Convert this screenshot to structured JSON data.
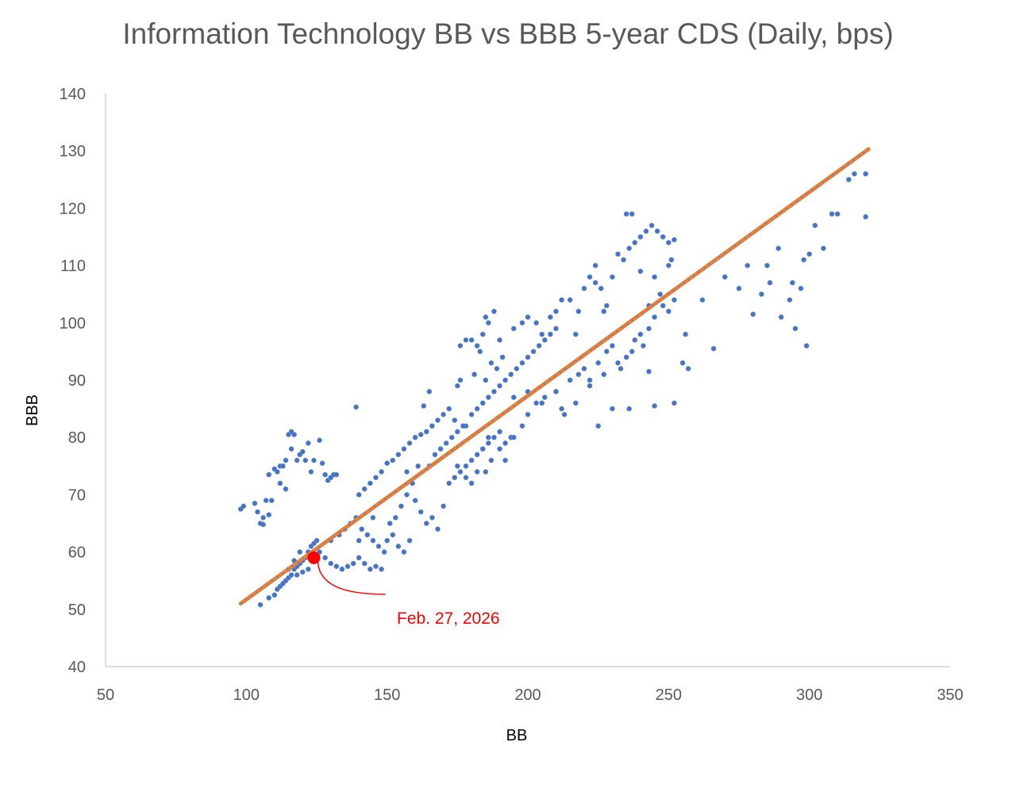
{
  "chart_data": {
    "type": "scatter",
    "title": "Information Technology BB vs BBB 5-year CDS (Daily, bps)",
    "xlabel": "BB",
    "ylabel": "BBB",
    "xlim": [
      50,
      350
    ],
    "ylim": [
      40,
      140
    ],
    "xticks": [
      "50",
      "100",
      "150",
      "200",
      "250",
      "300",
      "350"
    ],
    "yticks": [
      "40",
      "50",
      "60",
      "70",
      "80",
      "90",
      "100",
      "110",
      "120",
      "130",
      "140"
    ],
    "grid": false,
    "colors": {
      "points": "#4472c4",
      "trend": "#ed7d31",
      "highlight": "#ff0000"
    },
    "trendline": {
      "x": [
        98,
        321
      ],
      "y": [
        51,
        130.3
      ]
    },
    "highlight": {
      "x": 124,
      "y": 59,
      "label": "Feb. 27, 2026"
    },
    "points": [
      [
        98,
        67.5
      ],
      [
        99,
        68
      ],
      [
        104,
        67
      ],
      [
        105,
        65
      ],
      [
        106,
        66
      ],
      [
        103,
        68.5
      ],
      [
        108,
        66.5
      ],
      [
        107,
        69
      ],
      [
        108,
        73.5
      ],
      [
        110,
        74.5
      ],
      [
        111,
        74
      ],
      [
        112,
        75
      ],
      [
        113,
        75
      ],
      [
        114,
        76
      ],
      [
        115,
        80.5
      ],
      [
        116,
        81
      ],
      [
        117,
        80.5
      ],
      [
        116,
        78
      ],
      [
        118,
        76
      ],
      [
        119,
        77
      ],
      [
        120,
        77.5
      ],
      [
        121,
        76
      ],
      [
        122,
        79
      ],
      [
        123,
        74
      ],
      [
        124,
        76
      ],
      [
        126,
        79.5
      ],
      [
        127,
        75.5
      ],
      [
        128,
        73.5
      ],
      [
        129,
        72.5
      ],
      [
        130,
        73
      ],
      [
        131,
        73.5
      ],
      [
        132,
        73.5
      ],
      [
        139,
        85.3
      ],
      [
        114,
        71
      ],
      [
        109,
        69
      ],
      [
        106,
        64.8
      ],
      [
        112,
        72
      ],
      [
        105,
        50.8
      ],
      [
        108,
        52
      ],
      [
        110,
        52.5
      ],
      [
        111,
        53.5
      ],
      [
        112,
        54
      ],
      [
        113,
        54.5
      ],
      [
        114,
        55
      ],
      [
        115,
        55.5
      ],
      [
        116,
        56
      ],
      [
        117,
        57
      ],
      [
        118,
        57.5
      ],
      [
        119,
        58
      ],
      [
        120,
        58.5
      ],
      [
        121,
        59
      ],
      [
        122,
        60
      ],
      [
        123,
        61
      ],
      [
        124,
        61.5
      ],
      [
        125,
        62
      ],
      [
        115,
        57
      ],
      [
        118,
        56
      ],
      [
        120,
        56.5
      ],
      [
        122,
        57
      ],
      [
        119,
        60
      ],
      [
        117,
        58.5
      ],
      [
        126,
        60
      ],
      [
        128,
        59
      ],
      [
        130,
        58
      ],
      [
        132,
        57.5
      ],
      [
        134,
        57
      ],
      [
        136,
        57.5
      ],
      [
        138,
        58
      ],
      [
        140,
        59
      ],
      [
        142,
        58
      ],
      [
        144,
        57
      ],
      [
        146,
        57.5
      ],
      [
        148,
        57
      ],
      [
        130,
        62
      ],
      [
        133,
        63
      ],
      [
        135,
        64
      ],
      [
        137,
        65
      ],
      [
        139,
        66
      ],
      [
        141,
        64
      ],
      [
        143,
        63
      ],
      [
        145,
        62
      ],
      [
        147,
        61
      ],
      [
        149,
        60
      ],
      [
        150,
        62
      ],
      [
        152,
        63
      ],
      [
        154,
        61
      ],
      [
        156,
        60
      ],
      [
        158,
        62
      ],
      [
        153,
        66
      ],
      [
        155,
        68
      ],
      [
        157,
        70
      ],
      [
        160,
        69
      ],
      [
        162,
        67
      ],
      [
        164,
        65
      ],
      [
        166,
        66
      ],
      [
        168,
        64
      ],
      [
        170,
        68
      ],
      [
        159,
        72
      ],
      [
        151,
        65
      ],
      [
        145,
        66
      ],
      [
        140,
        62
      ],
      [
        140,
        70
      ],
      [
        142,
        71
      ],
      [
        144,
        72
      ],
      [
        146,
        73
      ],
      [
        148,
        74
      ],
      [
        150,
        75.5
      ],
      [
        152,
        76
      ],
      [
        154,
        77
      ],
      [
        156,
        78
      ],
      [
        158,
        79
      ],
      [
        160,
        80
      ],
      [
        162,
        80.5
      ],
      [
        164,
        81
      ],
      [
        166,
        82
      ],
      [
        168,
        83
      ],
      [
        170,
        84
      ],
      [
        172,
        85
      ],
      [
        163,
        85.5
      ],
      [
        165,
        88
      ],
      [
        175,
        89
      ],
      [
        176,
        90
      ],
      [
        174,
        83
      ],
      [
        178,
        82
      ],
      [
        161,
        75
      ],
      [
        157,
        74
      ],
      [
        165,
        75
      ],
      [
        167,
        77
      ],
      [
        169,
        78
      ],
      [
        171,
        79
      ],
      [
        173,
        80
      ],
      [
        175,
        81
      ],
      [
        177,
        82
      ],
      [
        172,
        72
      ],
      [
        174,
        73
      ],
      [
        176,
        74
      ],
      [
        178,
        75
      ],
      [
        180,
        76
      ],
      [
        182,
        77
      ],
      [
        184,
        78
      ],
      [
        186,
        79
      ],
      [
        188,
        80
      ],
      [
        190,
        81
      ],
      [
        185,
        74
      ],
      [
        187,
        76
      ],
      [
        192,
        79
      ],
      [
        194,
        80
      ],
      [
        180,
        84
      ],
      [
        182,
        85
      ],
      [
        184,
        86
      ],
      [
        186,
        87
      ],
      [
        188,
        88
      ],
      [
        190,
        89
      ],
      [
        192,
        90
      ],
      [
        194,
        91
      ],
      [
        196,
        92
      ],
      [
        198,
        93
      ],
      [
        200,
        94
      ],
      [
        202,
        95
      ],
      [
        204,
        96
      ],
      [
        206,
        97
      ],
      [
        208,
        98
      ],
      [
        210,
        99
      ],
      [
        195,
        87
      ],
      [
        200,
        88
      ],
      [
        205,
        86
      ],
      [
        210,
        88
      ],
      [
        212,
        85
      ],
      [
        215,
        90
      ],
      [
        218,
        91
      ],
      [
        220,
        92
      ],
      [
        222,
        90
      ],
      [
        225,
        93
      ],
      [
        228,
        95
      ],
      [
        230,
        96
      ],
      [
        233,
        92
      ],
      [
        235,
        94
      ],
      [
        238,
        97
      ],
      [
        240,
        98
      ],
      [
        243,
        99
      ],
      [
        245,
        101
      ],
      [
        248,
        103
      ],
      [
        250,
        102
      ],
      [
        252,
        104
      ],
      [
        247,
        105
      ],
      [
        243,
        103
      ],
      [
        180,
        97
      ],
      [
        182,
        96
      ],
      [
        184,
        98
      ],
      [
        186,
        100
      ],
      [
        188,
        102
      ],
      [
        185,
        101
      ],
      [
        183,
        95
      ],
      [
        187,
        93
      ],
      [
        189,
        92
      ],
      [
        191,
        94
      ],
      [
        190,
        97
      ],
      [
        178,
        97
      ],
      [
        176,
        96
      ],
      [
        181,
        91
      ],
      [
        185,
        90
      ],
      [
        195,
        99
      ],
      [
        198,
        100
      ],
      [
        200,
        101
      ],
      [
        203,
        100
      ],
      [
        205,
        98
      ],
      [
        208,
        101
      ],
      [
        210,
        102
      ],
      [
        212,
        104
      ],
      [
        215,
        104
      ],
      [
        218,
        102
      ],
      [
        220,
        106
      ],
      [
        222,
        108
      ],
      [
        224,
        107
      ],
      [
        226,
        106
      ],
      [
        228,
        103
      ],
      [
        230,
        108
      ],
      [
        232,
        112
      ],
      [
        234,
        111
      ],
      [
        236,
        113
      ],
      [
        238,
        114
      ],
      [
        240,
        115
      ],
      [
        242,
        116
      ],
      [
        244,
        117
      ],
      [
        246,
        116
      ],
      [
        248,
        115
      ],
      [
        250,
        114
      ],
      [
        252,
        114.5
      ],
      [
        235,
        119
      ],
      [
        237,
        119
      ],
      [
        240,
        109
      ],
      [
        245,
        108
      ],
      [
        250,
        110
      ],
      [
        251,
        111
      ],
      [
        224,
        110
      ],
      [
        227,
        102
      ],
      [
        217,
        98
      ],
      [
        257,
        92
      ],
      [
        262,
        104
      ],
      [
        266,
        95.5
      ],
      [
        270,
        108
      ],
      [
        275,
        106
      ],
      [
        278,
        110
      ],
      [
        280,
        101.5
      ],
      [
        283,
        105
      ],
      [
        285,
        110
      ],
      [
        286,
        107
      ],
      [
        289,
        113
      ],
      [
        290,
        101
      ],
      [
        293,
        104
      ],
      [
        294,
        107
      ],
      [
        295,
        99
      ],
      [
        297,
        106
      ],
      [
        298,
        111
      ],
      [
        299,
        96
      ],
      [
        300,
        112
      ],
      [
        302,
        117
      ],
      [
        305,
        113
      ],
      [
        308,
        119
      ],
      [
        310,
        119
      ],
      [
        314,
        125
      ],
      [
        316,
        126
      ],
      [
        320,
        126
      ],
      [
        320,
        118.5
      ],
      [
        256,
        98
      ],
      [
        252,
        86
      ],
      [
        255,
        93
      ],
      [
        243,
        91.5
      ],
      [
        245,
        85.5
      ],
      [
        236,
        85
      ],
      [
        230,
        85
      ],
      [
        225,
        82
      ],
      [
        175,
        75
      ],
      [
        178,
        73
      ],
      [
        180,
        72
      ],
      [
        182,
        74
      ],
      [
        184,
        78
      ],
      [
        186,
        80
      ],
      [
        190,
        78
      ],
      [
        192,
        76
      ],
      [
        195,
        80
      ],
      [
        198,
        82
      ],
      [
        200,
        84
      ],
      [
        203,
        86
      ],
      [
        206,
        87
      ],
      [
        210,
        88
      ],
      [
        213,
        84
      ],
      [
        217,
        86
      ],
      [
        222,
        89
      ],
      [
        227,
        91
      ],
      [
        232,
        93
      ],
      [
        237,
        95
      ],
      [
        241,
        96
      ]
    ]
  }
}
